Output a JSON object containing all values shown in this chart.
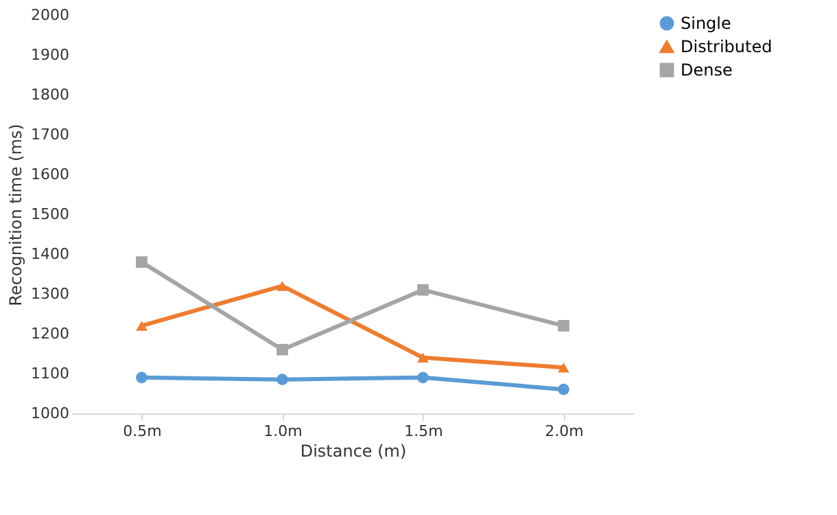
{
  "chart_data": {
    "type": "line",
    "xlabel": "Distance (m)",
    "ylabel": "Recognition time (ms)",
    "categories": [
      "0.5m",
      "1.0m",
      "1.5m",
      "2.0m"
    ],
    "series": [
      {
        "name": "Single",
        "color": "#5b9bd5",
        "marker": "circle",
        "values": [
          1090,
          1085,
          1090,
          1060
        ]
      },
      {
        "name": "Distributed",
        "color": "#ed7d31",
        "marker": "triangle",
        "values": [
          1220,
          1320,
          1140,
          1115
        ]
      },
      {
        "name": "Dense",
        "color": "#a5a5a5",
        "marker": "square",
        "values": [
          1380,
          1160,
          1310,
          1220
        ]
      }
    ],
    "ylim": [
      1000,
      2000
    ],
    "yticks": [
      1000,
      1100,
      1200,
      1300,
      1400,
      1500,
      1600,
      1700,
      1800,
      1900,
      2000
    ],
    "grid": false,
    "legend": "right"
  }
}
